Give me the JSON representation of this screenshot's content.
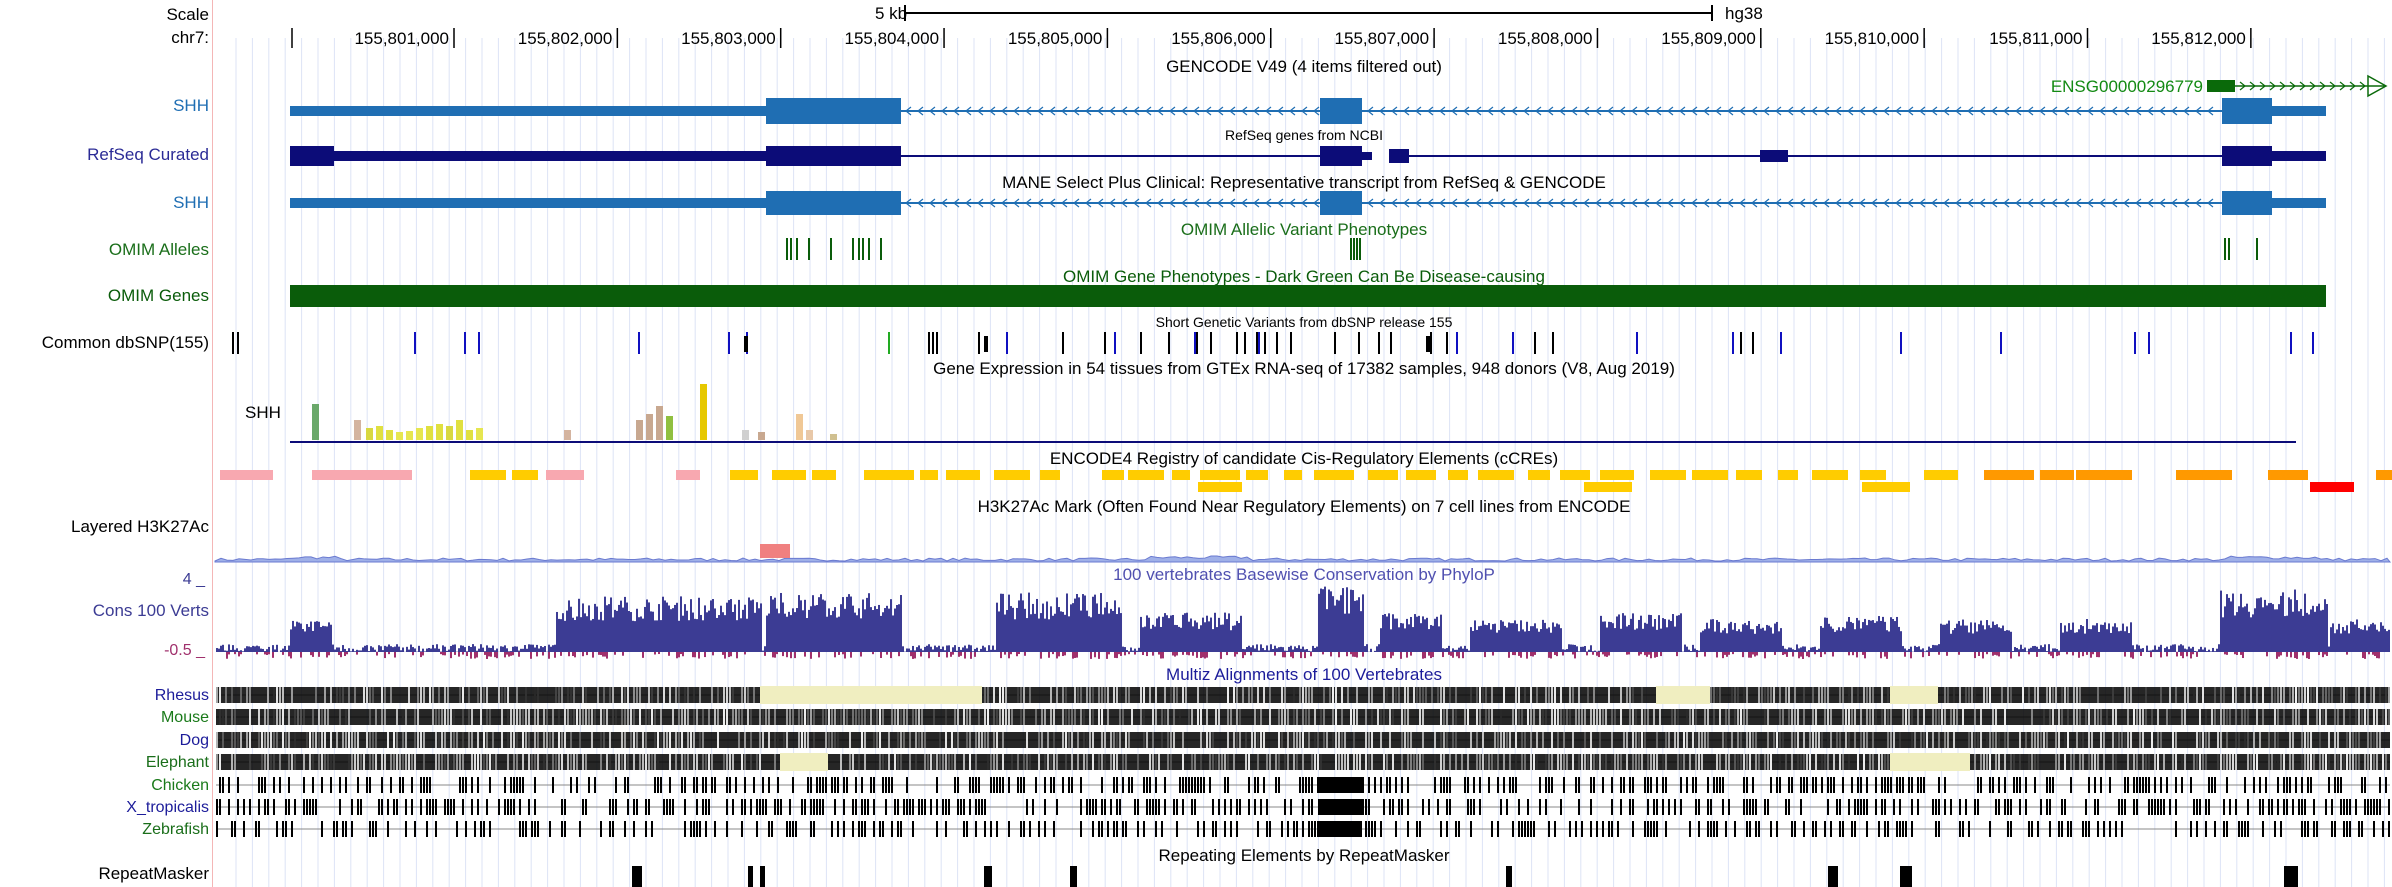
{
  "ruler": {
    "scale_label": "Scale",
    "chrom_label": "chr7:",
    "scale_bar_text": "5 kb",
    "assembly": "hg38",
    "ticks": [
      "155,801,000",
      "155,802,000",
      "155,803,000",
      "155,804,000",
      "155,805,000",
      "155,806,000",
      "155,807,000",
      "155,808,000",
      "155,809,000",
      "155,810,000",
      "155,811,000",
      "155,812,000"
    ]
  },
  "colors": {
    "gencode": "#1f6eb3",
    "refseq": "#0c0c78",
    "omim_green": "#0a5c0a",
    "omim_label": "#1a6e1a",
    "conservation": "#3c3c94",
    "conservation_neg": "#a0306c",
    "multiz_title": "#1c1c9a",
    "ccre_pink": "#f8a8b0",
    "ccre_yellow": "#ffcc00",
    "ccre_orange": "#ff9900",
    "ccre_red": "#ff0000"
  },
  "tracks": {
    "gencode": {
      "title": "GENCODE V49 (4 items filtered out)",
      "gene_left": "SHH",
      "gene_right": "ENSG00000296779"
    },
    "refseq": {
      "label": "RefSeq Curated",
      "subtitle": "RefSeq genes from NCBI"
    },
    "mane": {
      "title": "MANE Select Plus Clinical: Representative transcript from RefSeq & GENCODE",
      "gene": "SHH"
    },
    "omim_alleles": {
      "label": "OMIM Alleles",
      "title": "OMIM Allelic Variant Phenotypes"
    },
    "omim_genes": {
      "label": "OMIM Genes",
      "title": "OMIM Gene Phenotypes - Dark Green Can Be Disease-causing"
    },
    "dbsnp": {
      "label": "Common dbSNP(155)",
      "title": "Short Genetic Variants from dbSNP release 155"
    },
    "gtex": {
      "title": "Gene Expression in 54 tissues from GTEx RNA-seq of 17382 samples, 948 donors (V8, Aug 2019)",
      "gene": "SHH"
    },
    "ccre": {
      "title": "ENCODE4 Registry of candidate Cis-Regulatory Elements (cCREs)"
    },
    "h3k27ac": {
      "label": "Layered H3K27Ac",
      "title": "H3K27Ac Mark (Often Found Near Regulatory Elements) on 7 cell lines from ENCODE"
    },
    "cons": {
      "label": "Cons 100 Verts",
      "title": "100 vertebrates Basewise Conservation by PhyloP",
      "ymax": "4 _",
      "ymin": "-0.5 _"
    },
    "multiz": {
      "title": "Multiz Alignments of 100 Vertebrates",
      "species": [
        "Rhesus",
        "Mouse",
        "Dog",
        "Elephant",
        "Chicken",
        "X_tropicalis",
        "Zebrafish"
      ]
    },
    "rmsk": {
      "label": "RepeatMasker",
      "title": "Repeating Elements by RepeatMasker"
    }
  }
}
